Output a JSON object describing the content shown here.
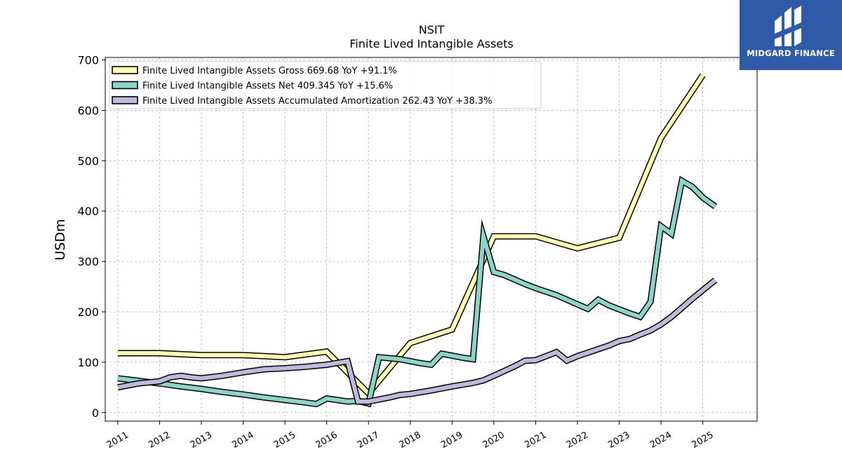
{
  "logo": {
    "text": "MIDGARD FINANCE",
    "color": "#2f5aa8"
  },
  "chart_data": {
    "type": "line",
    "title": "NSIT",
    "subtitle": "Finite Lived Intangible Assets",
    "xlabel": "",
    "ylabel": "USDm",
    "xlim": [
      2010.7,
      2026.3
    ],
    "ylim": [
      -17,
      705
    ],
    "yticks": [
      0,
      100,
      200,
      300,
      400,
      500,
      600,
      700
    ],
    "xticks": [
      "2011",
      "2012",
      "2013",
      "2014",
      "2015",
      "2016",
      "2017",
      "2018",
      "2019",
      "2020",
      "2021",
      "2022",
      "2023",
      "2024",
      "2025"
    ],
    "grid": true,
    "legend_position": "top-left",
    "series": [
      {
        "name": "Finite Lived Intangible Assets Gross  669.68 YoY +91.1%",
        "color": "#ffffb3",
        "points": [
          [
            2011.0,
            118
          ],
          [
            2012.0,
            118
          ],
          [
            2013.0,
            114
          ],
          [
            2014.0,
            114
          ],
          [
            2015.0,
            110
          ],
          [
            2016.0,
            121
          ],
          [
            2017.0,
            38
          ],
          [
            2018.0,
            138
          ],
          [
            2019.0,
            165
          ],
          [
            2020.0,
            350
          ],
          [
            2021.0,
            350
          ],
          [
            2022.0,
            326
          ],
          [
            2023.0,
            347
          ],
          [
            2024.0,
            545
          ],
          [
            2025.0,
            670
          ]
        ]
      },
      {
        "name": "Finite Lived Intangible Assets Net  409.345 YoY +15.6%",
        "color": "#8dd3c7",
        "points": [
          [
            2011.0,
            68
          ],
          [
            2011.5,
            63
          ],
          [
            2012.0,
            58
          ],
          [
            2012.5,
            52
          ],
          [
            2013.0,
            47
          ],
          [
            2013.5,
            41
          ],
          [
            2014.0,
            36
          ],
          [
            2014.5,
            30
          ],
          [
            2015.0,
            25
          ],
          [
            2015.5,
            20
          ],
          [
            2015.75,
            17
          ],
          [
            2016.0,
            28
          ],
          [
            2016.5,
            22
          ],
          [
            2016.75,
            23
          ],
          [
            2017.0,
            18
          ],
          [
            2017.25,
            110
          ],
          [
            2017.75,
            106
          ],
          [
            2018.25,
            98
          ],
          [
            2018.5,
            95
          ],
          [
            2018.75,
            117
          ],
          [
            2019.25,
            109
          ],
          [
            2019.5,
            106
          ],
          [
            2019.75,
            350
          ],
          [
            2020.0,
            279
          ],
          [
            2020.25,
            273
          ],
          [
            2020.5,
            264
          ],
          [
            2020.75,
            255
          ],
          [
            2021.0,
            247
          ],
          [
            2021.5,
            233
          ],
          [
            2022.0,
            215
          ],
          [
            2022.25,
            206
          ],
          [
            2022.5,
            224
          ],
          [
            2022.75,
            213
          ],
          [
            2023.0,
            205
          ],
          [
            2023.25,
            197
          ],
          [
            2023.5,
            190
          ],
          [
            2023.75,
            220
          ],
          [
            2024.0,
            370
          ],
          [
            2024.25,
            355
          ],
          [
            2024.5,
            460
          ],
          [
            2024.75,
            448
          ],
          [
            2025.0,
            427
          ],
          [
            2025.3,
            409
          ]
        ]
      },
      {
        "name": "Finite Lived Intangible Assets Accumulated Amortization  262.43 YoY +38.3%",
        "color": "#bebada",
        "points": [
          [
            2011.0,
            50
          ],
          [
            2011.5,
            58
          ],
          [
            2012.0,
            62
          ],
          [
            2012.25,
            70
          ],
          [
            2012.5,
            73
          ],
          [
            2012.75,
            70
          ],
          [
            2013.0,
            68
          ],
          [
            2013.5,
            73
          ],
          [
            2014.0,
            80
          ],
          [
            2014.5,
            86
          ],
          [
            2015.0,
            88
          ],
          [
            2015.5,
            91
          ],
          [
            2016.0,
            95
          ],
          [
            2016.5,
            102
          ],
          [
            2016.75,
            22
          ],
          [
            2017.0,
            22
          ],
          [
            2017.5,
            30
          ],
          [
            2017.75,
            35
          ],
          [
            2018.0,
            37
          ],
          [
            2018.5,
            44
          ],
          [
            2019.0,
            52
          ],
          [
            2019.5,
            59
          ],
          [
            2019.75,
            64
          ],
          [
            2020.0,
            73
          ],
          [
            2020.5,
            92
          ],
          [
            2020.75,
            103
          ],
          [
            2021.0,
            104
          ],
          [
            2021.5,
            120
          ],
          [
            2021.75,
            103
          ],
          [
            2022.0,
            112
          ],
          [
            2022.5,
            126
          ],
          [
            2022.75,
            133
          ],
          [
            2023.0,
            142
          ],
          [
            2023.25,
            146
          ],
          [
            2023.5,
            155
          ],
          [
            2023.75,
            163
          ],
          [
            2024.0,
            175
          ],
          [
            2024.25,
            190
          ],
          [
            2024.5,
            208
          ],
          [
            2024.75,
            226
          ],
          [
            2025.0,
            243
          ],
          [
            2025.3,
            263
          ]
        ]
      }
    ]
  }
}
